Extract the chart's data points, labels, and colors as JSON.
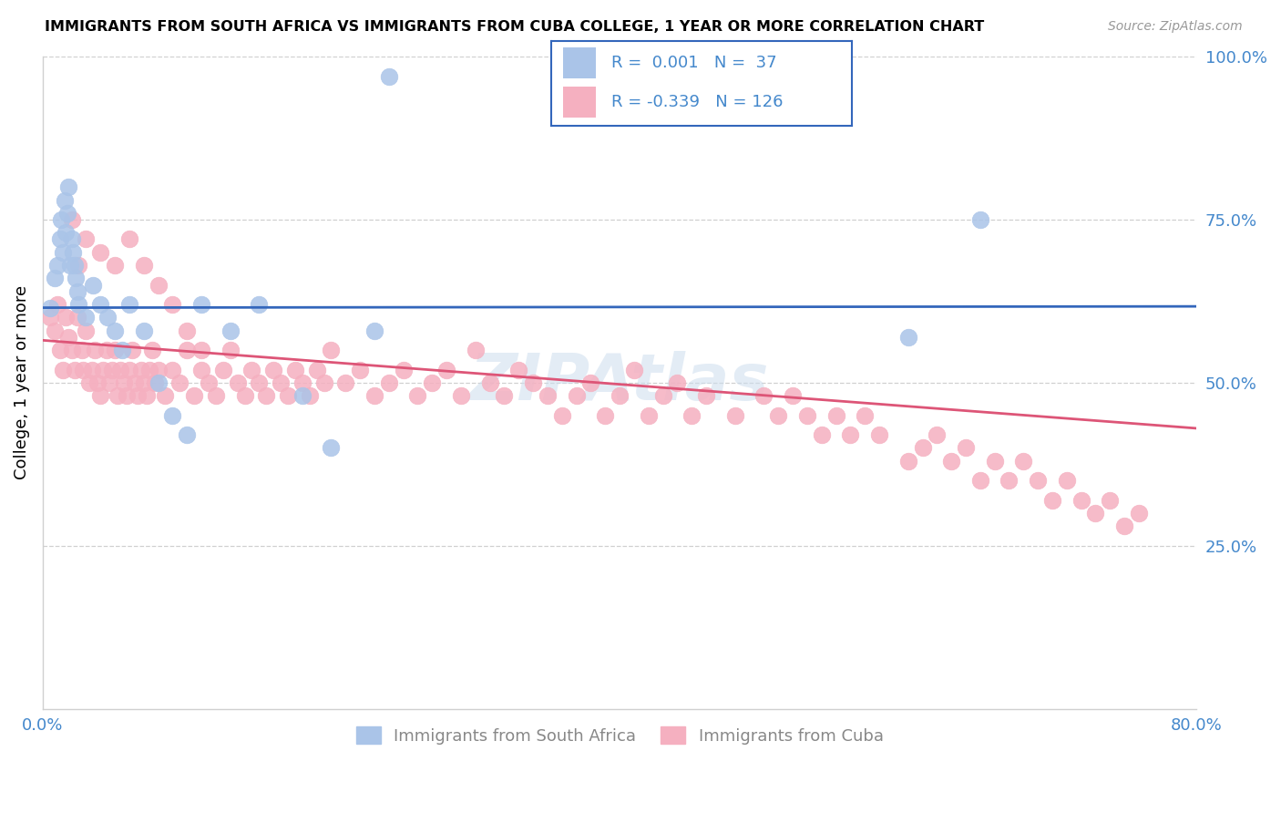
{
  "title": "IMMIGRANTS FROM SOUTH AFRICA VS IMMIGRANTS FROM CUBA COLLEGE, 1 YEAR OR MORE CORRELATION CHART",
  "source": "Source: ZipAtlas.com",
  "ylabel": "College, 1 year or more",
  "xlim": [
    0.0,
    0.8
  ],
  "ylim": [
    0.0,
    1.0
  ],
  "xtick_positions": [
    0.0,
    0.1,
    0.2,
    0.3,
    0.4,
    0.5,
    0.6,
    0.7,
    0.8
  ],
  "yticks_right": [
    0.25,
    0.5,
    0.75,
    1.0
  ],
  "yticklabels_right": [
    "25.0%",
    "50.0%",
    "75.0%",
    "100.0%"
  ],
  "grid_color": "#d0d0d0",
  "background_color": "#ffffff",
  "series1_color": "#aac4e8",
  "series2_color": "#f5b0c0",
  "series1_label": "Immigrants from South Africa",
  "series2_label": "Immigrants from Cuba",
  "series1_R": 0.001,
  "series1_N": 37,
  "series2_R": -0.339,
  "series2_N": 126,
  "series1_line_color": "#3366bb",
  "series2_line_color": "#dd5577",
  "tick_color": "#4488cc",
  "watermark": "ZIPAtlas",
  "blue_line_y": 0.615,
  "pink_line_y0": 0.565,
  "pink_line_y1": 0.43,
  "series1_x": [
    0.005,
    0.008,
    0.01,
    0.012,
    0.013,
    0.014,
    0.015,
    0.016,
    0.017,
    0.018,
    0.019,
    0.02,
    0.021,
    0.022,
    0.023,
    0.024,
    0.025,
    0.03,
    0.035,
    0.04,
    0.045,
    0.05,
    0.055,
    0.06,
    0.07,
    0.08,
    0.09,
    0.1,
    0.11,
    0.13,
    0.15,
    0.18,
    0.2,
    0.23,
    0.24,
    0.6,
    0.65
  ],
  "series1_y": [
    0.615,
    0.66,
    0.68,
    0.72,
    0.75,
    0.7,
    0.78,
    0.73,
    0.76,
    0.8,
    0.68,
    0.72,
    0.7,
    0.68,
    0.66,
    0.64,
    0.62,
    0.6,
    0.65,
    0.62,
    0.6,
    0.58,
    0.55,
    0.62,
    0.58,
    0.5,
    0.45,
    0.42,
    0.62,
    0.58,
    0.62,
    0.48,
    0.4,
    0.58,
    0.97,
    0.57,
    0.75
  ],
  "series2_x": [
    0.005,
    0.008,
    0.01,
    0.012,
    0.014,
    0.016,
    0.018,
    0.02,
    0.022,
    0.024,
    0.025,
    0.027,
    0.028,
    0.03,
    0.032,
    0.034,
    0.036,
    0.038,
    0.04,
    0.042,
    0.044,
    0.046,
    0.048,
    0.05,
    0.052,
    0.054,
    0.056,
    0.058,
    0.06,
    0.062,
    0.064,
    0.066,
    0.068,
    0.07,
    0.072,
    0.074,
    0.076,
    0.078,
    0.08,
    0.085,
    0.09,
    0.095,
    0.1,
    0.105,
    0.11,
    0.115,
    0.12,
    0.125,
    0.13,
    0.135,
    0.14,
    0.145,
    0.15,
    0.155,
    0.16,
    0.165,
    0.17,
    0.175,
    0.18,
    0.185,
    0.19,
    0.195,
    0.2,
    0.21,
    0.22,
    0.23,
    0.24,
    0.25,
    0.26,
    0.27,
    0.28,
    0.29,
    0.3,
    0.31,
    0.32,
    0.33,
    0.34,
    0.35,
    0.36,
    0.37,
    0.38,
    0.39,
    0.4,
    0.41,
    0.42,
    0.43,
    0.44,
    0.45,
    0.46,
    0.48,
    0.5,
    0.51,
    0.52,
    0.53,
    0.54,
    0.55,
    0.56,
    0.57,
    0.58,
    0.6,
    0.61,
    0.62,
    0.63,
    0.64,
    0.65,
    0.66,
    0.67,
    0.68,
    0.69,
    0.7,
    0.71,
    0.72,
    0.73,
    0.74,
    0.75,
    0.76,
    0.02,
    0.03,
    0.04,
    0.05,
    0.06,
    0.07,
    0.08,
    0.09,
    0.1,
    0.11
  ],
  "series2_y": [
    0.6,
    0.58,
    0.62,
    0.55,
    0.52,
    0.6,
    0.57,
    0.55,
    0.52,
    0.6,
    0.68,
    0.55,
    0.52,
    0.58,
    0.5,
    0.52,
    0.55,
    0.5,
    0.48,
    0.52,
    0.55,
    0.5,
    0.52,
    0.55,
    0.48,
    0.52,
    0.5,
    0.48,
    0.52,
    0.55,
    0.5,
    0.48,
    0.52,
    0.5,
    0.48,
    0.52,
    0.55,
    0.5,
    0.52,
    0.48,
    0.52,
    0.5,
    0.55,
    0.48,
    0.52,
    0.5,
    0.48,
    0.52,
    0.55,
    0.5,
    0.48,
    0.52,
    0.5,
    0.48,
    0.52,
    0.5,
    0.48,
    0.52,
    0.5,
    0.48,
    0.52,
    0.5,
    0.55,
    0.5,
    0.52,
    0.48,
    0.5,
    0.52,
    0.48,
    0.5,
    0.52,
    0.48,
    0.55,
    0.5,
    0.48,
    0.52,
    0.5,
    0.48,
    0.45,
    0.48,
    0.5,
    0.45,
    0.48,
    0.52,
    0.45,
    0.48,
    0.5,
    0.45,
    0.48,
    0.45,
    0.48,
    0.45,
    0.48,
    0.45,
    0.42,
    0.45,
    0.42,
    0.45,
    0.42,
    0.38,
    0.4,
    0.42,
    0.38,
    0.4,
    0.35,
    0.38,
    0.35,
    0.38,
    0.35,
    0.32,
    0.35,
    0.32,
    0.3,
    0.32,
    0.28,
    0.3,
    0.75,
    0.72,
    0.7,
    0.68,
    0.72,
    0.68,
    0.65,
    0.62,
    0.58,
    0.55
  ]
}
